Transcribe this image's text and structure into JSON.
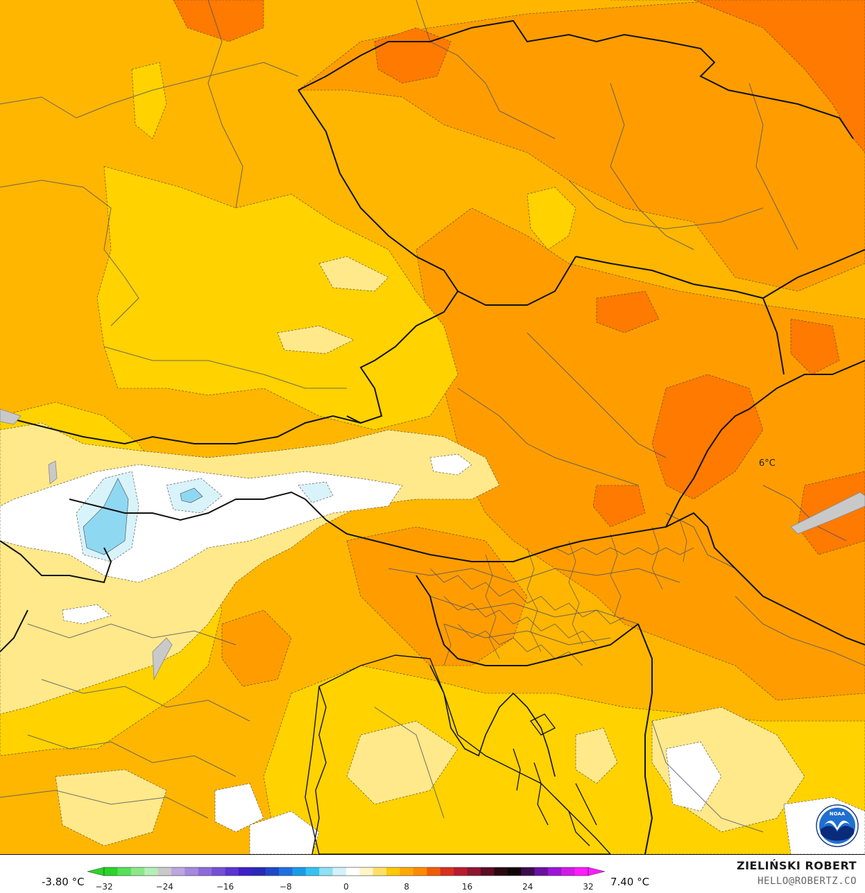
{
  "map": {
    "point_value": "6°C"
  },
  "legend": {
    "min_label": "-3.80 °C",
    "max_label": "7.40 °C",
    "ticks": [
      "−32",
      "−24",
      "−16",
      "−8",
      "0",
      "8",
      "16",
      "24",
      "32"
    ],
    "tick_values": [
      -32,
      -24,
      -16,
      -8,
      0,
      8,
      16,
      24,
      32
    ],
    "range": [
      -32,
      32
    ],
    "colors": [
      "#2ad42a",
      "#58df58",
      "#8ae88a",
      "#b5efb5",
      "#c9c9c9",
      "#bba6df",
      "#a489dc",
      "#8c6cd9",
      "#7450d5",
      "#5b34d2",
      "#3f1fc8",
      "#2a28b8",
      "#1f48c8",
      "#1f6fe0",
      "#1a9be8",
      "#34c3f0",
      "#8ee0f6",
      "#d2f1fb",
      "#ffffff",
      "#fff6c8",
      "#ffe066",
      "#ffc800",
      "#ffa800",
      "#ff8a00",
      "#f25c00",
      "#d6301e",
      "#b81c2e",
      "#8e1630",
      "#5c0c24",
      "#2a0810",
      "#100408",
      "#3a0c4c",
      "#6a10a0",
      "#9c14d8",
      "#d21ae8",
      "#ff1cff"
    ]
  },
  "credits": {
    "author": "ZIELIŃSKI ROBERT",
    "email": "HELLO@ROBERTZ.CO",
    "logo": "NOAA"
  }
}
